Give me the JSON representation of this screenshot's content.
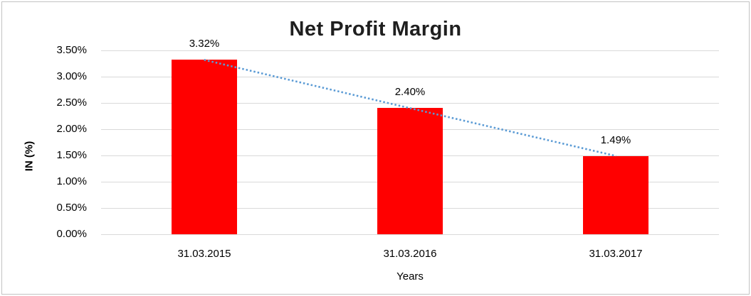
{
  "chart_data": {
    "type": "bar",
    "title": "Net Profit Margin",
    "xlabel": "Years",
    "ylabel": "IN (%)",
    "categories": [
      "31.03.2015",
      "31.03.2016",
      "31.03.2017"
    ],
    "values": [
      3.32,
      2.4,
      1.49
    ],
    "data_labels": [
      "3.32%",
      "2.40%",
      "1.49%"
    ],
    "y_ticks": [
      "3.50%",
      "3.00%",
      "2.50%",
      "2.00%",
      "1.50%",
      "1.00%",
      "0.50%",
      "0.00%"
    ],
    "ylim": [
      0,
      3.5
    ],
    "y_tick_step": 0.5,
    "grid": true,
    "legend": "none",
    "bar_color": "#ff0000",
    "gridline_color": "#d9d9d9",
    "frame_border_color": "#c3c3c3",
    "trendline": {
      "type": "linear",
      "style": "dotted",
      "color": "#5b9bd5"
    }
  }
}
